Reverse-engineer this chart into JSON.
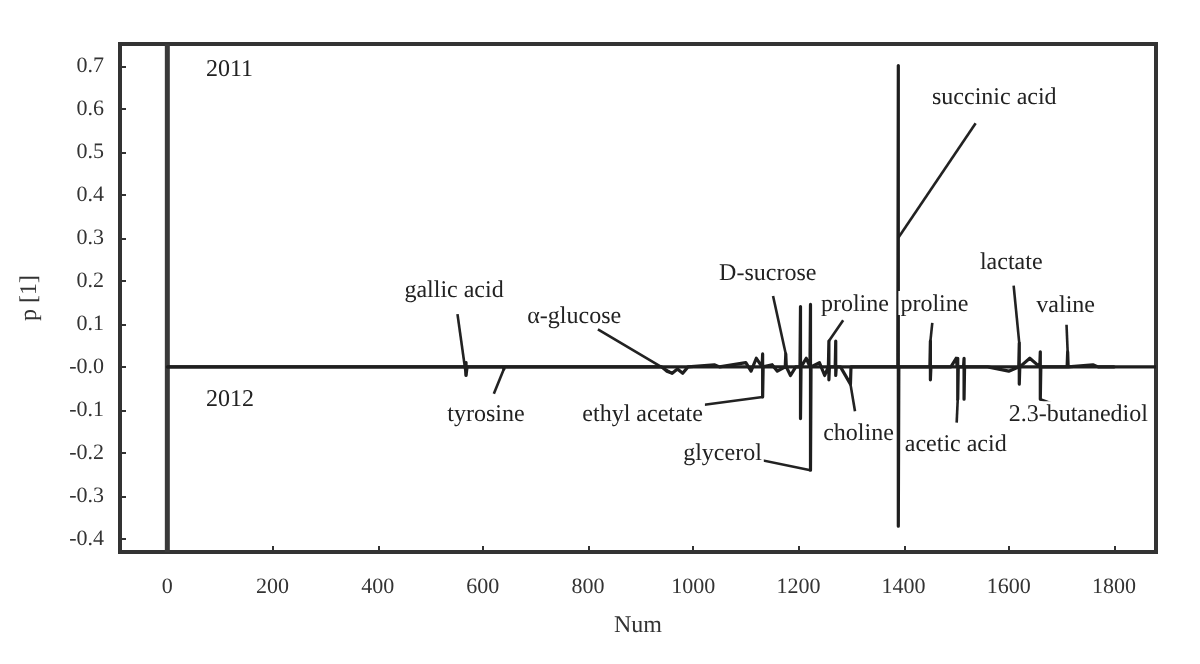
{
  "chart_data": {
    "type": "line",
    "xlabel": "Num",
    "ylabel": "p [1]",
    "x": [
      0,
      100,
      200,
      300,
      400,
      500,
      566,
      568,
      568,
      570,
      639,
      640,
      641,
      940,
      950,
      960,
      970,
      980,
      990,
      1040,
      1050,
      1100,
      1110,
      1120,
      1131,
      1132,
      1132,
      1133,
      1150,
      1160,
      1175,
      1176,
      1177,
      1185,
      1195,
      1203,
      1204,
      1204,
      1205,
      1215,
      1222,
      1223,
      1223,
      1224,
      1240,
      1250,
      1257,
      1258,
      1258,
      1259,
      1270,
      1271,
      1271,
      1272,
      1280,
      1299,
      1300,
      1389,
      1390,
      1390,
      1391,
      1440,
      1450,
      1451,
      1451,
      1452,
      1490,
      1500,
      1502,
      1503,
      1503,
      1504,
      1514,
      1515,
      1515,
      1516,
      1560,
      1600,
      1619,
      1620,
      1620,
      1621,
      1640,
      1659,
      1660,
      1660,
      1661,
      1700,
      1711,
      1712,
      1713,
      1760,
      1770,
      1800
    ],
    "series": [
      {
        "color": "#1e1e1e",
        "values": [
          0,
          0,
          0,
          0,
          0,
          0,
          0,
          0.01,
          -0.02,
          0,
          0,
          -0.005,
          0,
          0,
          -0.01,
          -0.015,
          -0.005,
          -0.015,
          0,
          0.005,
          0,
          0.01,
          -0.01,
          0.02,
          0,
          0.03,
          -0.07,
          0,
          0.005,
          -0.01,
          0,
          0.03,
          0,
          -0.02,
          0,
          0,
          0.14,
          -0.12,
          0,
          0.02,
          0,
          0.145,
          -0.24,
          0,
          0.01,
          -0.02,
          0,
          0.06,
          -0.03,
          0,
          0,
          0.06,
          -0.02,
          0,
          0,
          -0.04,
          0,
          0,
          0.7,
          -0.37,
          0,
          0,
          0,
          0.06,
          -0.03,
          0,
          0,
          0.02,
          0,
          0.02,
          -0.075,
          0,
          0,
          0.02,
          -0.075,
          0,
          0,
          -0.01,
          0,
          0.055,
          -0.04,
          0,
          0.02,
          0,
          0.035,
          -0.075,
          0,
          0,
          0,
          0.035,
          0,
          0.005,
          0,
          0
        ]
      }
    ],
    "xlim": [
      -90,
      1880
    ],
    "ylim": [
      -0.43,
      0.75
    ],
    "xticks": [
      0,
      200,
      400,
      600,
      800,
      1000,
      1200,
      1400,
      1600,
      1800
    ],
    "yticks": [
      -0.4,
      -0.3,
      -0.2,
      -0.1,
      {
        "value": 0,
        "label": "-0.0"
      },
      0.1,
      0.2,
      0.3,
      0.4,
      0.5,
      0.6,
      0.7
    ],
    "grid": false,
    "marker": "none",
    "line_style": "solid",
    "ref_lines": [
      {
        "axis": "x",
        "value": 0,
        "color": "#3a3a3a"
      },
      {
        "axis": "y",
        "value": 0,
        "color": "#1e1e1e"
      }
    ],
    "annotations": [
      "2011",
      "2012",
      {
        "text": "gallic acid",
        "x": 568,
        "y": -0.02
      },
      {
        "text": "tyrosine",
        "x": 640,
        "y": -0.005
      },
      {
        "text": "α-glucose",
        "x": 960,
        "y": -0.015
      },
      {
        "text": "ethyl acetate",
        "x": 1132,
        "y": -0.07
      },
      {
        "text": "D-sucrose",
        "x": 1176,
        "y": 0.03
      },
      {
        "text": "glycerol",
        "x": 1223,
        "y": -0.24
      },
      {
        "text": "proline",
        "x": 1258,
        "y": 0.06
      },
      {
        "text": "choline",
        "x": 1299,
        "y": -0.04
      },
      {
        "text": "succinic acid",
        "x": 1390,
        "y": 0.3
      },
      {
        "text": "proline",
        "x": 1451,
        "y": 0.06
      },
      {
        "text": "acetic acid",
        "x": 1503,
        "y": -0.075
      },
      {
        "text": "lactate",
        "x": 1620,
        "y": 0.055
      },
      {
        "text": "2.3-butanediol",
        "x": 1660,
        "y": -0.075
      },
      {
        "text": "valine",
        "x": 1712,
        "y": 0.035
      }
    ]
  }
}
